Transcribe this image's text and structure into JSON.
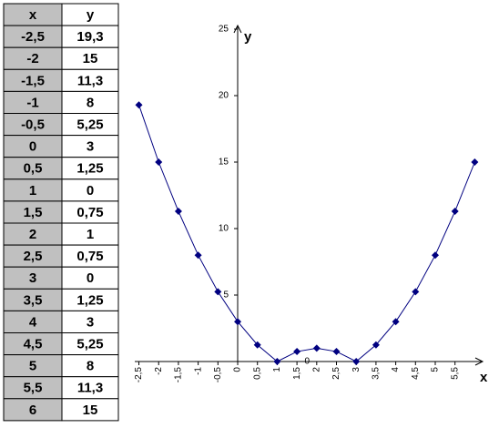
{
  "table": {
    "header": [
      "x",
      "y"
    ],
    "rows": [
      [
        "-2,5",
        "19,3"
      ],
      [
        "-2",
        "15"
      ],
      [
        "-1,5",
        "11,3"
      ],
      [
        "-1",
        "8"
      ],
      [
        "-0,5",
        "5,25"
      ],
      [
        "0",
        "3"
      ],
      [
        "0,5",
        "1,25"
      ],
      [
        "1",
        "0"
      ],
      [
        "1,5",
        "0,75"
      ],
      [
        "2",
        "1"
      ],
      [
        "2,5",
        "0,75"
      ],
      [
        "3",
        "0"
      ],
      [
        "3,5",
        "1,25"
      ],
      [
        "4",
        "3"
      ],
      [
        "4,5",
        "5,25"
      ],
      [
        "5",
        "8"
      ],
      [
        "5,5",
        "11,3"
      ],
      [
        "6",
        "15"
      ]
    ]
  },
  "chart_data": {
    "type": "line",
    "x_label": "x",
    "y_label": "y",
    "color": "#000080",
    "x": [
      -2.5,
      -2,
      -1.5,
      -1,
      -0.5,
      0,
      0.5,
      1,
      1.5,
      2,
      2.5,
      3,
      3.5,
      4,
      4.5,
      5,
      5.5,
      6
    ],
    "series": [
      {
        "name": "y",
        "color": "#000080",
        "values": [
          19.3,
          15,
          11.3,
          8,
          5.25,
          3,
          1.25,
          0,
          0.75,
          1,
          0.75,
          0,
          1.25,
          3,
          5.25,
          8,
          11.3,
          15
        ]
      }
    ],
    "xlim": [
      -2.6,
      6.3
    ],
    "ylim": [
      0,
      25
    ],
    "xticks": [
      {
        "value": -2.5,
        "label": "-2,5"
      },
      -2,
      {
        "value": -1.5,
        "label": "-1,5"
      },
      -1,
      {
        "value": -0.5,
        "label": "-0,5"
      },
      0,
      {
        "value": 0.5,
        "label": "0,5"
      },
      1,
      {
        "value": 1.5,
        "label": "1,5"
      },
      2,
      {
        "value": 2.5,
        "label": "2,5"
      },
      3,
      {
        "value": 3.5,
        "label": "3,5"
      },
      4,
      {
        "value": 4.5,
        "label": "4,5"
      },
      5,
      {
        "value": 5.5,
        "label": "5,5"
      }
    ],
    "yticks": [
      0,
      5,
      10,
      15,
      20,
      25
    ],
    "grid": false
  }
}
